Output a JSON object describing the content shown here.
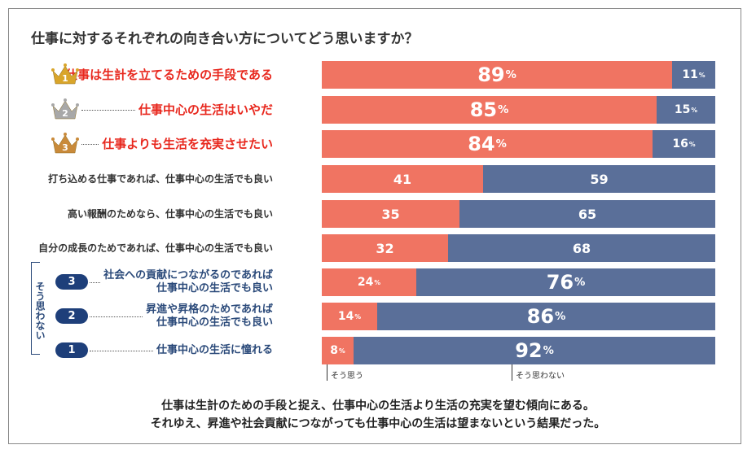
{
  "title": "仕事に対するそれぞれの向き合い方についてどう思いますか？",
  "chart_data": {
    "type": "bar",
    "orientation": "horizontal-stacked-100",
    "title": "仕事に対するそれぞれの向き合い方についてどう思いますか？",
    "series": [
      {
        "name": "そう思う",
        "color": "#f07462",
        "values": [
          89,
          85,
          84,
          41,
          35,
          32,
          24,
          14,
          8
        ]
      },
      {
        "name": "そう思わない",
        "color": "#5a6f99",
        "values": [
          11,
          15,
          16,
          59,
          65,
          68,
          76,
          86,
          92
        ]
      }
    ],
    "unit": "%",
    "rows": [
      {
        "lines": [
          "仕事は生計を立てるための手段である"
        ],
        "group": "top",
        "rank": "1",
        "yes": 89,
        "no": 11,
        "yes_pct": "%",
        "no_pct": "%"
      },
      {
        "lines": [
          "仕事中心の生活はいやだ"
        ],
        "group": "top",
        "rank": "2",
        "yes": 85,
        "no": 15,
        "yes_pct": "%",
        "no_pct": "%"
      },
      {
        "lines": [
          "仕事よりも生活を充実させたい"
        ],
        "group": "top",
        "rank": "3",
        "yes": 84,
        "no": 16,
        "yes_pct": "%",
        "no_pct": "%"
      },
      {
        "lines": [
          "打ち込める仕事であれば、仕事中心の生活でも良い"
        ],
        "group": "mid",
        "rank": "",
        "yes": 41,
        "no": 59,
        "yes_pct": "",
        "no_pct": ""
      },
      {
        "lines": [
          "高い報酬のためなら、仕事中心の生活でも良い"
        ],
        "group": "mid",
        "rank": "",
        "yes": 35,
        "no": 65,
        "yes_pct": "",
        "no_pct": ""
      },
      {
        "lines": [
          "自分の成長のためであれば、仕事中心の生活でも良い"
        ],
        "group": "mid",
        "rank": "",
        "yes": 32,
        "no": 68,
        "yes_pct": "",
        "no_pct": ""
      },
      {
        "lines": [
          "社会への貢献につながるのであれば",
          "仕事中心の生活でも良い"
        ],
        "group": "bottom",
        "rank": "3",
        "yes": 24,
        "no": 76,
        "yes_pct": "%",
        "no_pct": "%"
      },
      {
        "lines": [
          "昇進や昇格のためであれば",
          "仕事中心の生活でも良い"
        ],
        "group": "bottom",
        "rank": "2",
        "yes": 14,
        "no": 86,
        "yes_pct": "%",
        "no_pct": "%"
      },
      {
        "lines": [
          "仕事中心の生活に憧れる"
        ],
        "group": "bottom",
        "rank": "1",
        "yes": 8,
        "no": 92,
        "yes_pct": "%",
        "no_pct": "%"
      }
    ],
    "legend": [
      "そう思う",
      "そう思わない"
    ]
  },
  "side_label": "そう思わない",
  "crown_colors": [
    "#d9a52a",
    "#a8a8a8",
    "#c98a3a"
  ],
  "footer": [
    "仕事は生計のための手段と捉え、仕事中心の生活より生活の充実を望む傾向にある。",
    "それゆえ、昇進や社会貢献につながっても仕事中心の生活は望まないという結果だった。"
  ]
}
